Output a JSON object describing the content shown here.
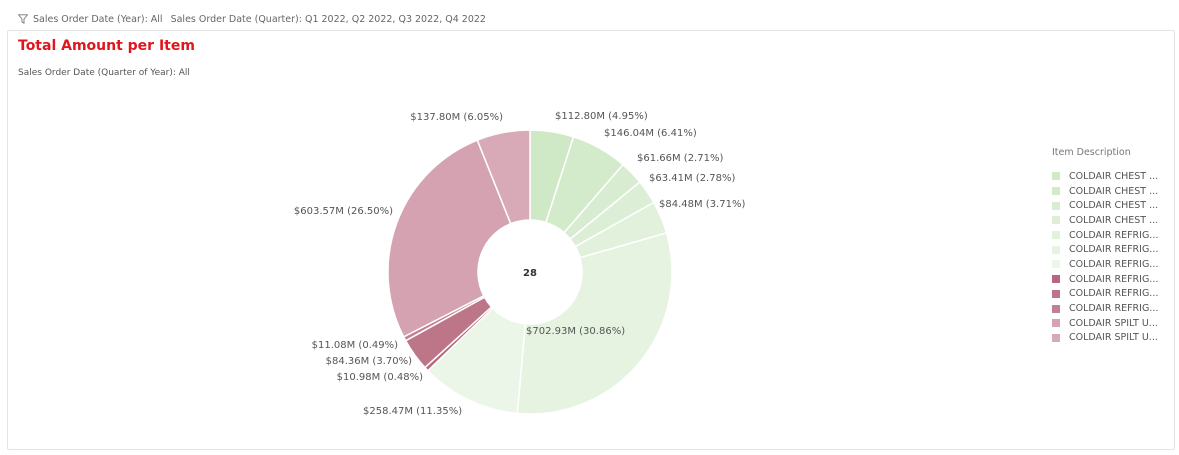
{
  "filters": {
    "year": "Sales Order Date (Year): All",
    "quarter": "Sales Order Date (Quarter): Q1 2022, Q2 2022, Q3 2022, Q4 2022"
  },
  "card": {
    "title": "Total Amount per Item",
    "subtitle": "Sales Order Date (Quarter of Year): All"
  },
  "legend": {
    "title": "Item Description",
    "items": [
      {
        "label": "COLDAIR CHEST ...",
        "color": "#cfe8c6"
      },
      {
        "label": "COLDAIR CHEST ...",
        "color": "#d3eacb"
      },
      {
        "label": "COLDAIR CHEST ...",
        "color": "#d7ecd0"
      },
      {
        "label": "COLDAIR CHEST ...",
        "color": "#dcefd6"
      },
      {
        "label": "COLDAIR REFRIG...",
        "color": "#e1f1db"
      },
      {
        "label": "COLDAIR REFRIG...",
        "color": "#e6f3e1"
      },
      {
        "label": "COLDAIR REFRIG...",
        "color": "#ecf6e8"
      },
      {
        "label": "COLDAIR REFRIG...",
        "color": "#b5697c"
      },
      {
        "label": "COLDAIR REFRIG...",
        "color": "#bd7688"
      },
      {
        "label": "COLDAIR REFRIG...",
        "color": "#c28093"
      },
      {
        "label": "COLDAIR SPILT U...",
        "color": "#d4a2b1"
      },
      {
        "label": "COLDAIR SPILT U...",
        "color": "#d8aab8"
      }
    ]
  },
  "chart_data": {
    "type": "pie",
    "donut": true,
    "center_label": "28",
    "title": "Total Amount per Item",
    "subtitle": "Sales Order Date (Quarter of Year): All",
    "legend_title": "Item Description",
    "legend_position": "right",
    "slices": [
      {
        "label": "$112.80M (4.95%)",
        "value": 112.8,
        "percent": 4.95,
        "color": "#cfe8c6"
      },
      {
        "label": "$146.04M (6.41%)",
        "value": 146.04,
        "percent": 6.41,
        "color": "#d3eacb"
      },
      {
        "label": "$61.66M (2.71%)",
        "value": 61.66,
        "percent": 2.71,
        "color": "#d7ecd0"
      },
      {
        "label": "$63.41M (2.78%)",
        "value": 63.41,
        "percent": 2.78,
        "color": "#dcefd6"
      },
      {
        "label": "$84.48M (3.71%)",
        "value": 84.48,
        "percent": 3.71,
        "color": "#e1f1db"
      },
      {
        "label": "$702.93M (30.86%)",
        "value": 702.93,
        "percent": 30.86,
        "color": "#e6f3e1"
      },
      {
        "label": "$258.47M (11.35%)",
        "value": 258.47,
        "percent": 11.35,
        "color": "#ecf6e8"
      },
      {
        "label": "$10.98M (0.48%)",
        "value": 10.98,
        "percent": 0.48,
        "color": "#b5697c"
      },
      {
        "label": "$84.36M (3.70%)",
        "value": 84.36,
        "percent": 3.7,
        "color": "#bd7688"
      },
      {
        "label": "$11.08M (0.49%)",
        "value": 11.08,
        "percent": 0.49,
        "color": "#c28093"
      },
      {
        "label": "$603.57M (26.50%)",
        "value": 603.57,
        "percent": 26.5,
        "color": "#d4a2b1"
      },
      {
        "label": "$137.80M (6.05%)",
        "value": 137.8,
        "percent": 6.05,
        "color": "#d8aab8"
      }
    ]
  }
}
